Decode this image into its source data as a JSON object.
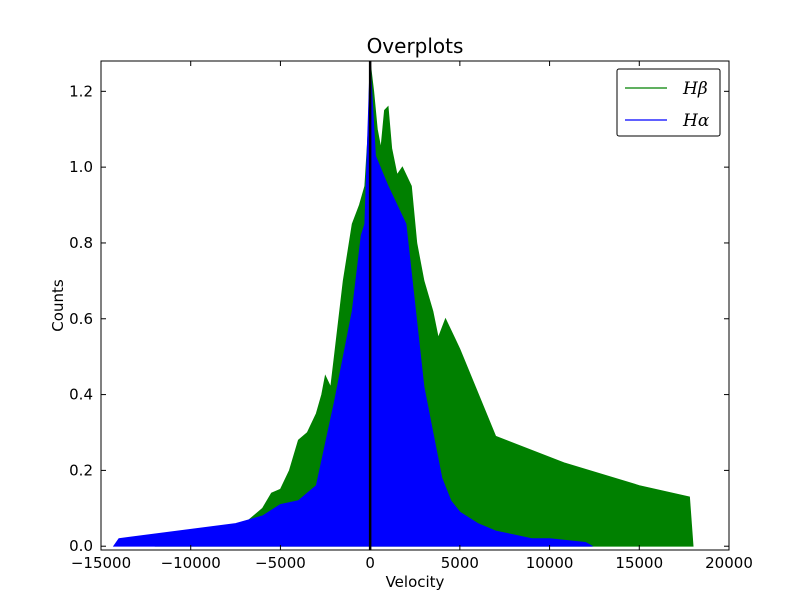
{
  "chart_data": {
    "type": "area",
    "title": "Overplots",
    "xlabel": "Velocity",
    "ylabel": "Counts",
    "xlim": [
      -15000,
      20000
    ],
    "ylim": [
      -0.01,
      1.28
    ],
    "xticks": [
      -15000,
      -10000,
      -5000,
      0,
      5000,
      10000,
      15000,
      20000
    ],
    "xtick_labels": [
      "−15000",
      "−10000",
      "−5000",
      "0",
      "5000",
      "10000",
      "15000",
      "20000"
    ],
    "yticks": [
      0.0,
      0.2,
      0.4,
      0.6,
      0.8,
      1.0,
      1.2
    ],
    "ytick_labels": [
      "0.0",
      "0.2",
      "0.4",
      "0.6",
      "0.8",
      "1.0",
      "1.2"
    ],
    "grid": false,
    "legend_position": "top-right",
    "vertical_line_x": 0,
    "series": [
      {
        "name": "Hβ",
        "color": "#008000",
        "x": [
          -12000,
          -9000,
          -7000,
          -6000,
          -5500,
          -5000,
          -4500,
          -4000,
          -3500,
          -3000,
          -2700,
          -2500,
          -2200,
          -2000,
          -1500,
          -1000,
          -600,
          -300,
          -100,
          0,
          200,
          400,
          600,
          800,
          1000,
          1200,
          1500,
          1800,
          2000,
          2300,
          2600,
          3000,
          3500,
          3800,
          4200,
          4700,
          5000,
          7000,
          10800,
          15000,
          17800,
          18000
        ],
        "y": [
          0.0,
          0.03,
          0.06,
          0.1,
          0.14,
          0.15,
          0.2,
          0.28,
          0.3,
          0.35,
          0.4,
          0.45,
          0.42,
          0.5,
          0.7,
          0.85,
          0.9,
          0.95,
          1.1,
          1.28,
          1.2,
          1.1,
          1.05,
          1.15,
          1.16,
          1.05,
          0.98,
          1.0,
          0.98,
          0.95,
          0.8,
          0.7,
          0.62,
          0.55,
          0.6,
          0.55,
          0.52,
          0.29,
          0.22,
          0.16,
          0.13,
          0.0
        ]
      },
      {
        "name": "Hα",
        "color": "#0000ff",
        "x": [
          -14300,
          -14000,
          -7500,
          -6000,
          -5000,
          -4000,
          -3500,
          -3000,
          -2000,
          -1000,
          -500,
          -300,
          0,
          300,
          1000,
          2000,
          3000,
          3500,
          4000,
          4500,
          5000,
          6000,
          7000,
          8000,
          9000,
          10000,
          12000,
          12400
        ],
        "y": [
          0.0,
          0.02,
          0.06,
          0.08,
          0.11,
          0.12,
          0.14,
          0.16,
          0.38,
          0.62,
          0.82,
          0.85,
          1.28,
          1.03,
          0.95,
          0.85,
          0.42,
          0.3,
          0.18,
          0.12,
          0.09,
          0.06,
          0.04,
          0.03,
          0.02,
          0.02,
          0.01,
          0.0
        ]
      }
    ]
  }
}
